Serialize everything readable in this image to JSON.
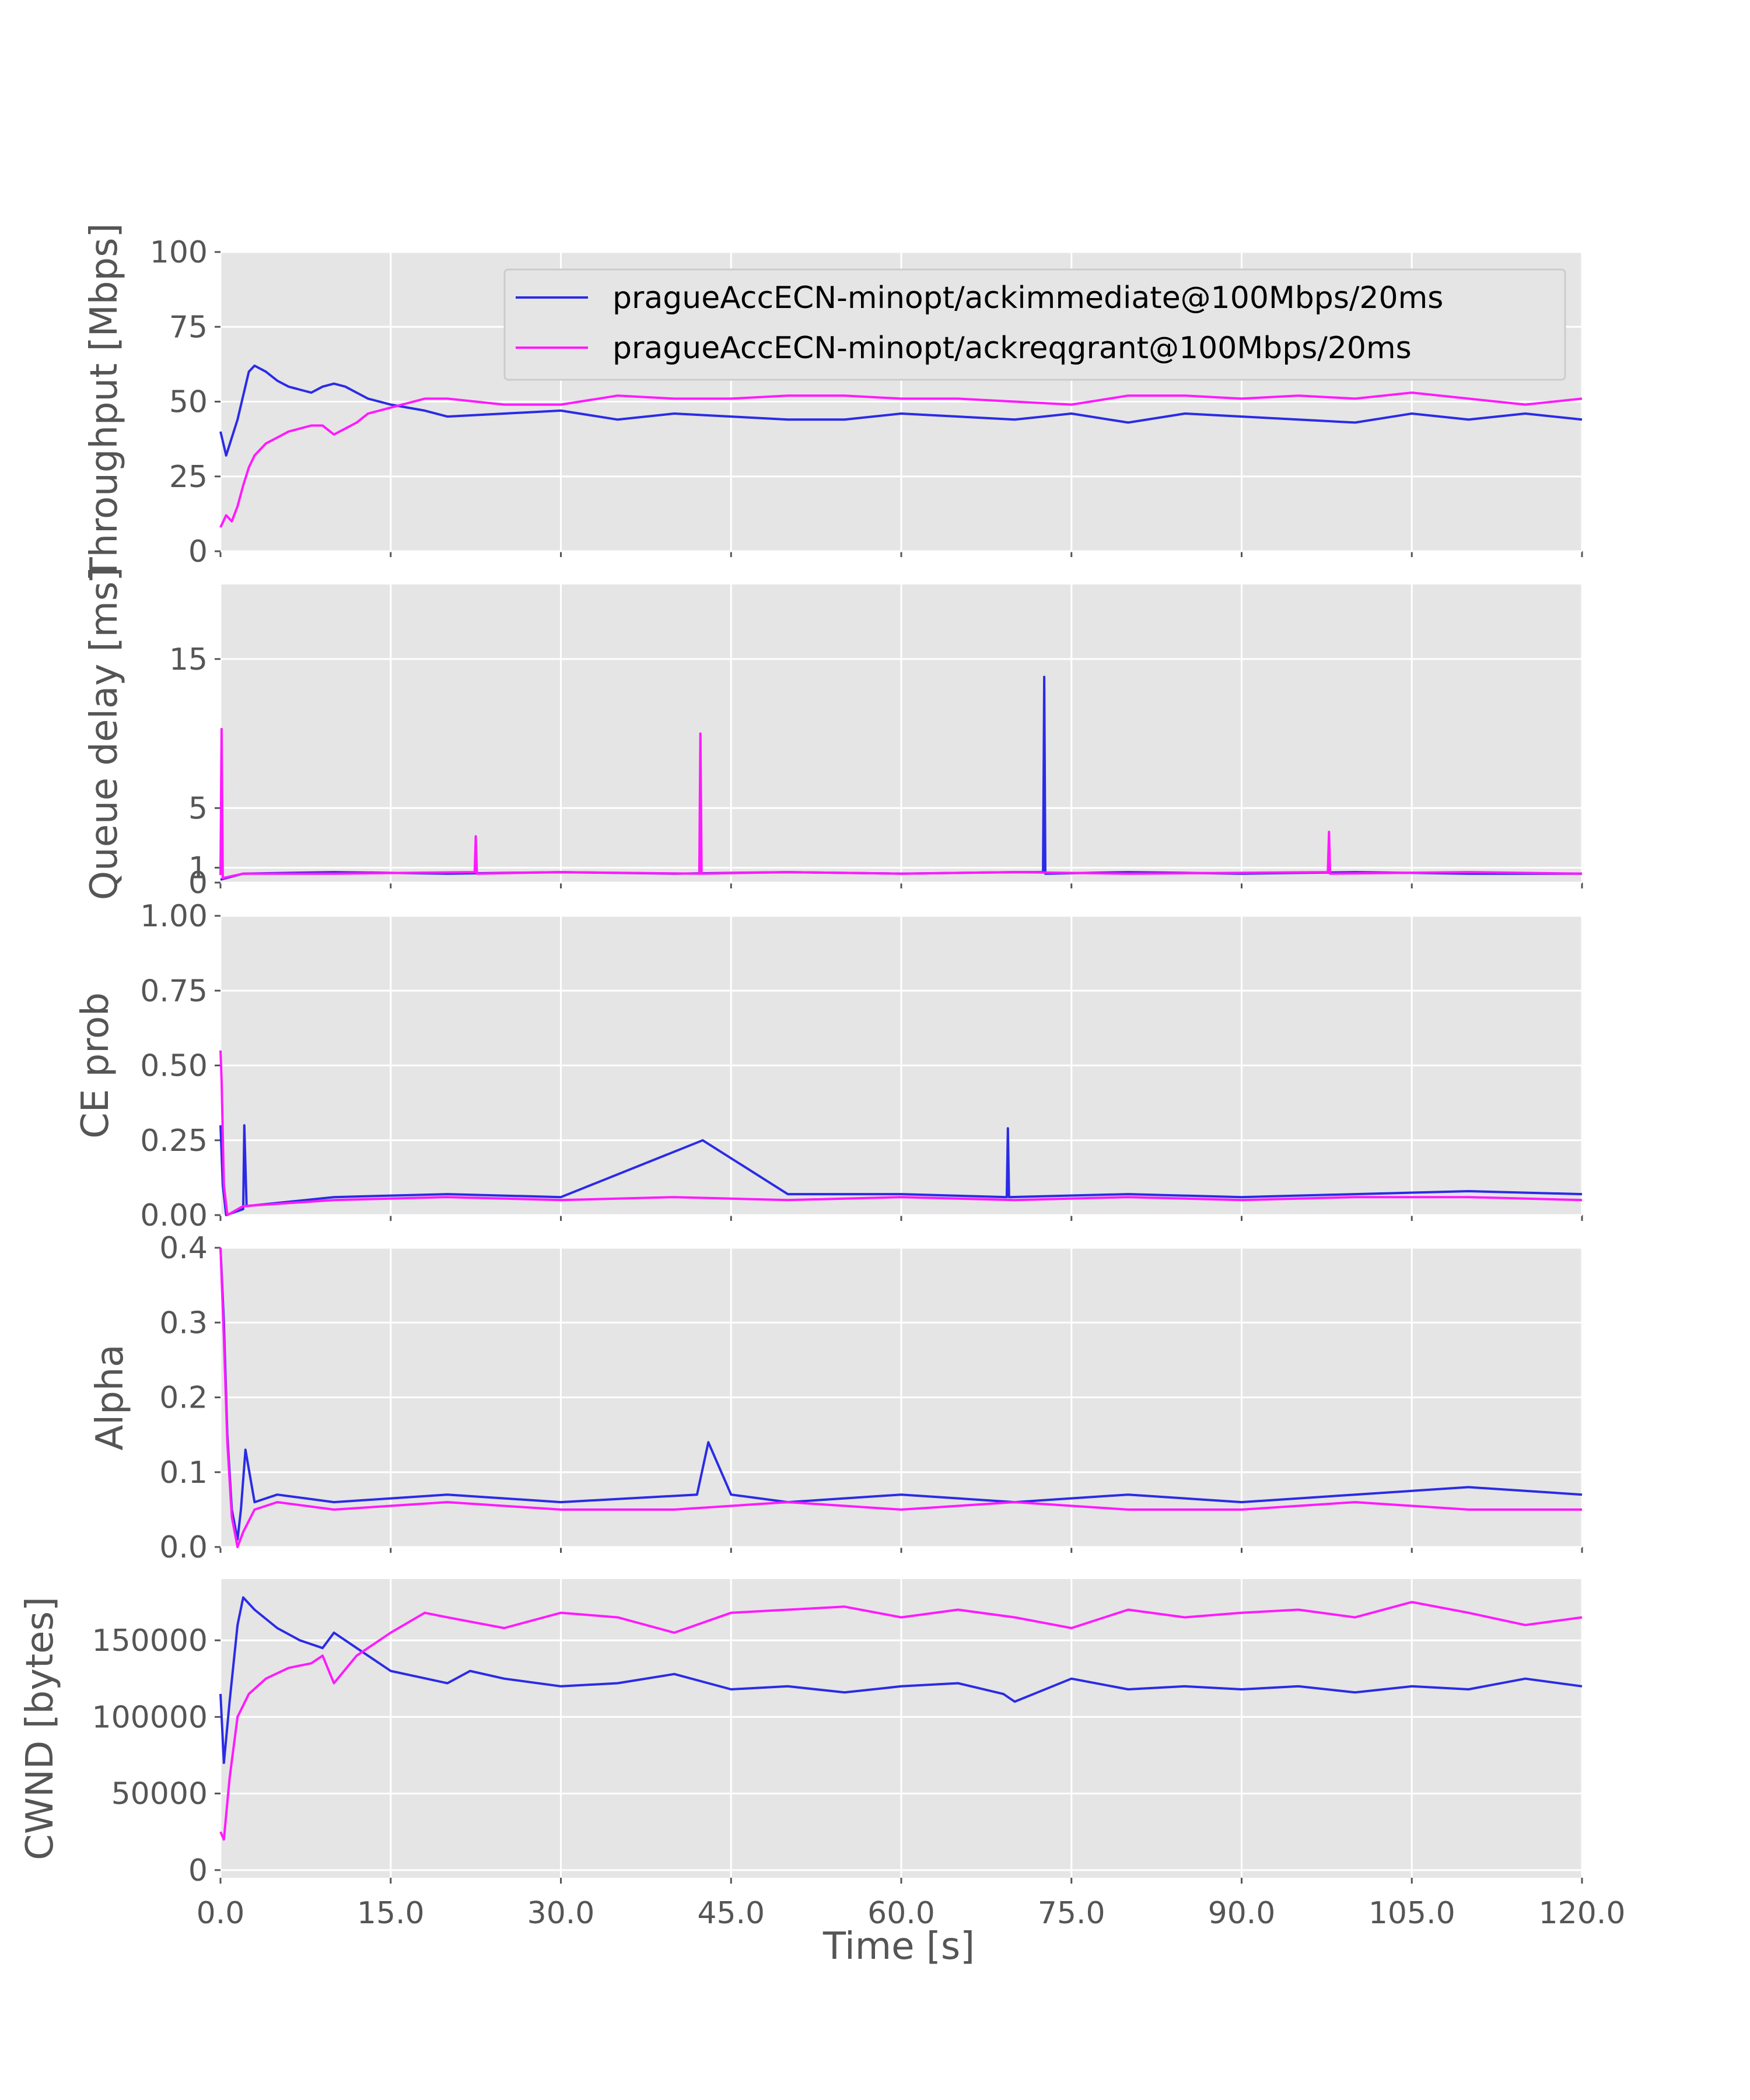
{
  "colors": {
    "ackimmediate": "#2b2be6",
    "ackreqgrant": "#ff1aff",
    "panel_bg": "#e5e5e5",
    "grid": "#ffffff",
    "tick_text": "#555555"
  },
  "chart_data": {
    "type": "line",
    "shared_x": {
      "label": "Time [s]",
      "lim": [
        0,
        120
      ],
      "ticks": [
        0,
        15,
        30,
        45,
        60,
        75,
        90,
        105,
        120
      ],
      "tick_labels": [
        "0.0",
        "15.0",
        "30.0",
        "45.0",
        "60.0",
        "75.0",
        "90.0",
        "105.0",
        "120.0"
      ]
    },
    "legend": {
      "position": "top-right of first panel",
      "entries": [
        "pragueAccECN-minopt/ackimmediate@100Mbps/20ms",
        "pragueAccECN-minopt/ackreqgrant@100Mbps/20ms"
      ]
    },
    "panels": [
      {
        "ylabel": "Throughput [Mbps]",
        "ylim": [
          0,
          100
        ],
        "yticks": [
          0,
          25,
          50,
          75,
          100
        ],
        "ytick_labels": [
          "0",
          "25",
          "50",
          "75",
          "100"
        ],
        "grid": true,
        "series": [
          {
            "name": "pragueAccECN-minopt/ackimmediate@100Mbps/20ms",
            "x": [
              0,
              0.5,
              1,
              1.5,
              2,
              2.5,
              3,
              4,
              5,
              6,
              7,
              8,
              9,
              10,
              11,
              12,
              13,
              15,
              18,
              20,
              25,
              30,
              35,
              40,
              45,
              50,
              55,
              60,
              65,
              70,
              75,
              80,
              85,
              90,
              95,
              100,
              105,
              110,
              115,
              120
            ],
            "y": [
              40,
              32,
              38,
              44,
              52,
              60,
              62,
              60,
              57,
              55,
              54,
              53,
              55,
              56,
              55,
              53,
              51,
              49,
              47,
              45,
              46,
              47,
              44,
              46,
              45,
              44,
              44,
              46,
              45,
              44,
              46,
              43,
              46,
              45,
              44,
              43,
              46,
              44,
              46,
              44
            ]
          },
          {
            "name": "pragueAccECN-minopt/ackreqgrant@100Mbps/20ms",
            "x": [
              0,
              0.5,
              1,
              1.5,
              2,
              2.5,
              3,
              4,
              5,
              6,
              7,
              8,
              9,
              10,
              11,
              12,
              13,
              15,
              18,
              20,
              25,
              30,
              35,
              40,
              45,
              50,
              55,
              60,
              65,
              70,
              75,
              80,
              85,
              90,
              95,
              100,
              105,
              110,
              115,
              120
            ],
            "y": [
              8,
              12,
              10,
              15,
              22,
              28,
              32,
              36,
              38,
              40,
              41,
              42,
              42,
              39,
              41,
              43,
              46,
              48,
              51,
              51,
              49,
              49,
              52,
              51,
              51,
              52,
              52,
              51,
              51,
              50,
              49,
              52,
              52,
              51,
              52,
              51,
              53,
              51,
              49,
              51
            ]
          }
        ]
      },
      {
        "ylabel": "Queue delay [ms]",
        "ylim": [
          0,
          20
        ],
        "yticks": [
          0,
          1,
          5,
          15
        ],
        "ytick_labels": [
          "0",
          "1",
          "5",
          "15"
        ],
        "grid": true,
        "series": [
          {
            "name": "pragueAccECN-minopt/ackimmediate@100Mbps/20ms",
            "x": [
              0,
              2,
              10,
              20,
              30,
              40,
              50,
              60,
              70,
              72.5,
              72.6,
              72.7,
              80,
              90,
              100,
              110,
              120
            ],
            "y": [
              0.2,
              0.6,
              0.7,
              0.6,
              0.7,
              0.6,
              0.7,
              0.6,
              0.7,
              0.7,
              13.8,
              0.6,
              0.7,
              0.6,
              0.7,
              0.6,
              0.6
            ]
          },
          {
            "name": "pragueAccECN-minopt/ackreqgrant@100Mbps/20ms",
            "x": [
              0,
              0.1,
              0.2,
              2,
              10,
              22.4,
              22.5,
              22.6,
              30,
              42.2,
              42.3,
              42.4,
              50,
              60,
              70,
              80,
              97.6,
              97.7,
              97.8,
              110,
              120
            ],
            "y": [
              0.5,
              10.3,
              0.3,
              0.6,
              0.6,
              0.7,
              3.1,
              0.6,
              0.7,
              0.6,
              10.0,
              0.6,
              0.7,
              0.6,
              0.7,
              0.6,
              0.7,
              3.4,
              0.6,
              0.7,
              0.6
            ]
          }
        ]
      },
      {
        "ylabel": "CE prob",
        "ylim": [
          0,
          1
        ],
        "yticks": [
          0,
          0.25,
          0.5,
          0.75,
          1
        ],
        "ytick_labels": [
          "0.00",
          "0.25",
          "0.50",
          "0.75",
          "1.00"
        ],
        "grid": true,
        "series": [
          {
            "name": "pragueAccECN-minopt/ackimmediate@100Mbps/20ms",
            "x": [
              0,
              0.2,
              0.5,
              2,
              2.1,
              2.3,
              10,
              20,
              30,
              42.5,
              50,
              60,
              69.3,
              69.4,
              69.5,
              80,
              90,
              100,
              110,
              120
            ],
            "y": [
              0.3,
              0.1,
              0.0,
              0.02,
              0.3,
              0.03,
              0.06,
              0.07,
              0.06,
              0.25,
              0.07,
              0.07,
              0.06,
              0.29,
              0.06,
              0.07,
              0.06,
              0.07,
              0.08,
              0.07
            ]
          },
          {
            "name": "pragueAccECN-minopt/ackreqgrant@100Mbps/20ms",
            "x": [
              0,
              0.1,
              0.3,
              0.6,
              2,
              10,
              20,
              30,
              40,
              50,
              60,
              70,
              80,
              90,
              100,
              110,
              120
            ],
            "y": [
              0.55,
              0.45,
              0.1,
              0.0,
              0.03,
              0.05,
              0.06,
              0.05,
              0.06,
              0.05,
              0.06,
              0.05,
              0.06,
              0.05,
              0.06,
              0.06,
              0.05
            ]
          }
        ]
      },
      {
        "ylabel": "Alpha",
        "ylim": [
          0,
          0.4
        ],
        "yticks": [
          0,
          0.1,
          0.2,
          0.3,
          0.4
        ],
        "ytick_labels": [
          "0.0",
          "0.1",
          "0.2",
          "0.3",
          "0.4"
        ],
        "grid": true,
        "series": [
          {
            "name": "pragueAccECN-minopt/ackimmediate@100Mbps/20ms",
            "x": [
              0,
              0.3,
              0.6,
              1,
              1.5,
              1.8,
              2.2,
              3,
              5,
              10,
              20,
              30,
              42,
              43,
              45,
              50,
              60,
              70,
              80,
              90,
              100,
              110,
              120
            ],
            "y": [
              0.4,
              0.3,
              0.15,
              0.05,
              0.01,
              0.05,
              0.13,
              0.06,
              0.07,
              0.06,
              0.07,
              0.06,
              0.07,
              0.14,
              0.07,
              0.06,
              0.07,
              0.06,
              0.07,
              0.06,
              0.07,
              0.08,
              0.07
            ]
          },
          {
            "name": "pragueAccECN-minopt/ackreqgrant@100Mbps/20ms",
            "x": [
              0,
              0.3,
              0.6,
              1,
              1.5,
              2,
              3,
              5,
              10,
              20,
              30,
              40,
              50,
              60,
              70,
              80,
              90,
              100,
              110,
              120
            ],
            "y": [
              0.4,
              0.28,
              0.14,
              0.04,
              0.0,
              0.02,
              0.05,
              0.06,
              0.05,
              0.06,
              0.05,
              0.05,
              0.06,
              0.05,
              0.06,
              0.05,
              0.05,
              0.06,
              0.05,
              0.05
            ]
          }
        ]
      },
      {
        "ylabel": "CWND [bytes]",
        "ylim": [
          -5000,
          190000
        ],
        "yticks": [
          0,
          50000,
          100000,
          150000
        ],
        "ytick_labels": [
          "0",
          "50000",
          "100000",
          "150000"
        ],
        "grid": true,
        "series": [
          {
            "name": "pragueAccECN-minopt/ackimmediate@100Mbps/20ms",
            "x": [
              0,
              0.3,
              0.8,
              1.5,
              2,
              3,
              5,
              7,
              9,
              10,
              12,
              15,
              20,
              22,
              25,
              30,
              35,
              40,
              45,
              50,
              55,
              60,
              65,
              69,
              70,
              75,
              80,
              85,
              90,
              95,
              100,
              105,
              110,
              115,
              120
            ],
            "y": [
              115000,
              70000,
              110000,
              160000,
              178000,
              170000,
              158000,
              150000,
              145000,
              155000,
              145000,
              130000,
              122000,
              130000,
              125000,
              120000,
              122000,
              128000,
              118000,
              120000,
              116000,
              120000,
              122000,
              115000,
              110000,
              125000,
              118000,
              120000,
              118000,
              120000,
              116000,
              120000,
              118000,
              125000,
              120000
            ]
          },
          {
            "name": "pragueAccECN-minopt/ackreqgrant@100Mbps/20ms",
            "x": [
              0,
              0.3,
              0.8,
              1.5,
              2.5,
              4,
              6,
              8,
              9,
              10,
              12,
              15,
              18,
              20,
              25,
              30,
              35,
              40,
              45,
              50,
              55,
              60,
              65,
              70,
              75,
              80,
              85,
              90,
              95,
              100,
              105,
              110,
              115,
              120
            ],
            "y": [
              25000,
              20000,
              60000,
              100000,
              115000,
              125000,
              132000,
              135000,
              140000,
              122000,
              140000,
              155000,
              168000,
              165000,
              158000,
              168000,
              165000,
              155000,
              168000,
              170000,
              172000,
              165000,
              170000,
              165000,
              158000,
              170000,
              165000,
              168000,
              170000,
              165000,
              175000,
              168000,
              160000,
              165000
            ]
          }
        ]
      }
    ]
  }
}
